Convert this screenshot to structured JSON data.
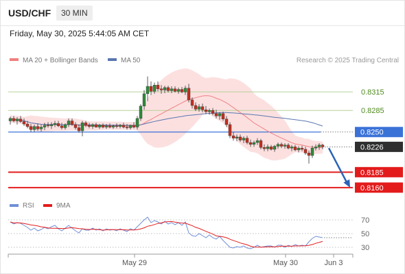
{
  "header": {
    "symbol": "USD/CHF",
    "timeframe": "30 MIN"
  },
  "datetime": "Friday, May 30, 2025 5:44:05 AM CET",
  "legend": {
    "ma20_bb": "MA 20 + Bollinger Bands",
    "ma50": "MA 50",
    "source": "Research © 2025 Trading Central"
  },
  "rsi_legend": {
    "rsi": "RSI",
    "ma9": "9MA"
  },
  "colors": {
    "candle_up": "#2e8b3a",
    "candle_down": "#c23020",
    "ma20": "#f08080",
    "ma50": "#5a76b0",
    "bands_fill": "#fbd5d5",
    "resistance": "#b5d096",
    "pivot": "#3b72d8",
    "support": "#e31b1b",
    "rsi": "#6f8fd8",
    "rsi_ma": "#e31b1b",
    "arrow": "#2a62b8"
  },
  "chart_data": {
    "type": "candlestick",
    "price_axis": {
      "range": [
        0.8141,
        0.8354
      ]
    },
    "levels": [
      {
        "name": "resistance-2",
        "value": 0.8315,
        "label": "0.8315",
        "kind": "resistance"
      },
      {
        "name": "resistance-1",
        "value": 0.8285,
        "label": "0.8285",
        "kind": "resistance"
      },
      {
        "name": "pivot",
        "value": 0.825,
        "label": "0.8250",
        "kind": "pivot"
      },
      {
        "name": "current-price",
        "value": 0.8226,
        "label": "0.8226",
        "kind": "last"
      },
      {
        "name": "support-1",
        "value": 0.8185,
        "label": "0.8185",
        "kind": "support"
      },
      {
        "name": "support-2",
        "value": 0.816,
        "label": "0.8160",
        "kind": "support"
      }
    ],
    "x_ticks": [
      "May 29",
      "May 30",
      "Jun 3"
    ],
    "forecast_arrow": {
      "from": 0.8224,
      "to": 0.816,
      "direction": "down"
    },
    "candles": [
      [
        0.8268,
        0.8275,
        0.8262,
        0.8272
      ],
      [
        0.8272,
        0.8276,
        0.8266,
        0.8268
      ],
      [
        0.8268,
        0.8274,
        0.8262,
        0.8271
      ],
      [
        0.8271,
        0.8276,
        0.8265,
        0.8267
      ],
      [
        0.8267,
        0.8272,
        0.826,
        0.8263
      ],
      [
        0.8263,
        0.8268,
        0.8256,
        0.8259
      ],
      [
        0.8259,
        0.8263,
        0.825,
        0.8254
      ],
      [
        0.8254,
        0.8262,
        0.825,
        0.8259
      ],
      [
        0.8259,
        0.8264,
        0.8252,
        0.8255
      ],
      [
        0.8255,
        0.8262,
        0.8251,
        0.8258
      ],
      [
        0.8258,
        0.8265,
        0.8253,
        0.8261
      ],
      [
        0.8261,
        0.8266,
        0.8257,
        0.826
      ],
      [
        0.826,
        0.8266,
        0.8255,
        0.8262
      ],
      [
        0.8262,
        0.8268,
        0.8258,
        0.8264
      ],
      [
        0.8264,
        0.8268,
        0.8258,
        0.826
      ],
      [
        0.826,
        0.8265,
        0.8254,
        0.8257
      ],
      [
        0.8257,
        0.8264,
        0.8254,
        0.8262
      ],
      [
        0.8262,
        0.8272,
        0.8258,
        0.8268
      ],
      [
        0.8268,
        0.8272,
        0.826,
        0.8262
      ],
      [
        0.8262,
        0.8266,
        0.8254,
        0.8257
      ],
      [
        0.8257,
        0.8262,
        0.8249,
        0.8252
      ],
      [
        0.8252,
        0.8268,
        0.8243,
        0.8265
      ],
      [
        0.8265,
        0.8268,
        0.8258,
        0.8261
      ],
      [
        0.8261,
        0.8265,
        0.8256,
        0.8259
      ],
      [
        0.8259,
        0.8264,
        0.8255,
        0.8262
      ],
      [
        0.8262,
        0.8265,
        0.8257,
        0.8258
      ],
      [
        0.8258,
        0.8263,
        0.8255,
        0.8261
      ],
      [
        0.8261,
        0.8264,
        0.8256,
        0.8258
      ],
      [
        0.8258,
        0.8263,
        0.8255,
        0.826
      ],
      [
        0.826,
        0.8264,
        0.8256,
        0.8258
      ],
      [
        0.8258,
        0.8262,
        0.8255,
        0.826
      ],
      [
        0.826,
        0.8264,
        0.8256,
        0.8259
      ],
      [
        0.8259,
        0.8263,
        0.8256,
        0.8261
      ],
      [
        0.8261,
        0.8265,
        0.8256,
        0.8258
      ],
      [
        0.8258,
        0.8263,
        0.8254,
        0.8257
      ],
      [
        0.8257,
        0.8262,
        0.8254,
        0.8261
      ],
      [
        0.8261,
        0.8266,
        0.8256,
        0.8258
      ],
      [
        0.8258,
        0.8276,
        0.8254,
        0.8272
      ],
      [
        0.8272,
        0.8295,
        0.8268,
        0.8292
      ],
      [
        0.8292,
        0.8318,
        0.8286,
        0.8312
      ],
      [
        0.8312,
        0.834,
        0.83,
        0.8324
      ],
      [
        0.8324,
        0.8332,
        0.831,
        0.8316
      ],
      [
        0.8316,
        0.833,
        0.8312,
        0.8326
      ],
      [
        0.8326,
        0.8332,
        0.8316,
        0.832
      ],
      [
        0.832,
        0.8326,
        0.8312,
        0.8318
      ],
      [
        0.8318,
        0.8325,
        0.8313,
        0.8322
      ],
      [
        0.8322,
        0.8325,
        0.8314,
        0.8317
      ],
      [
        0.8317,
        0.8324,
        0.8313,
        0.832
      ],
      [
        0.832,
        0.8324,
        0.8314,
        0.8316
      ],
      [
        0.8316,
        0.8322,
        0.8312,
        0.8319
      ],
      [
        0.8319,
        0.8323,
        0.8313,
        0.8315
      ],
      [
        0.8315,
        0.8325,
        0.831,
        0.8321
      ],
      [
        0.8321,
        0.8328,
        0.8298,
        0.8302
      ],
      [
        0.8302,
        0.8306,
        0.8288,
        0.8293
      ],
      [
        0.8293,
        0.8298,
        0.8284,
        0.8287
      ],
      [
        0.8287,
        0.8295,
        0.8283,
        0.8291
      ],
      [
        0.8291,
        0.8296,
        0.8282,
        0.8286
      ],
      [
        0.8286,
        0.8292,
        0.8279,
        0.8283
      ],
      [
        0.8283,
        0.8288,
        0.8278,
        0.8285
      ],
      [
        0.8285,
        0.8289,
        0.8277,
        0.828
      ],
      [
        0.828,
        0.8286,
        0.8272,
        0.8276
      ],
      [
        0.8276,
        0.8282,
        0.827,
        0.828
      ],
      [
        0.828,
        0.8283,
        0.8268,
        0.8271
      ],
      [
        0.8271,
        0.8276,
        0.8258,
        0.8262
      ],
      [
        0.8262,
        0.8266,
        0.824,
        0.8244
      ],
      [
        0.8244,
        0.825,
        0.8236,
        0.824
      ],
      [
        0.824,
        0.8246,
        0.8235,
        0.8242
      ],
      [
        0.8242,
        0.8246,
        0.8234,
        0.8237
      ],
      [
        0.8237,
        0.8243,
        0.8232,
        0.824
      ],
      [
        0.824,
        0.8244,
        0.823,
        0.8233
      ],
      [
        0.8233,
        0.8238,
        0.8226,
        0.823
      ],
      [
        0.823,
        0.8236,
        0.8226,
        0.8233
      ],
      [
        0.8233,
        0.824,
        0.8229,
        0.8236
      ],
      [
        0.8236,
        0.8239,
        0.8222,
        0.8225
      ],
      [
        0.8225,
        0.823,
        0.8219,
        0.8223
      ],
      [
        0.8223,
        0.823,
        0.8219,
        0.8226
      ],
      [
        0.8226,
        0.8229,
        0.822,
        0.8222
      ],
      [
        0.8222,
        0.8229,
        0.8218,
        0.8227
      ],
      [
        0.8227,
        0.8233,
        0.8223,
        0.823
      ],
      [
        0.823,
        0.8233,
        0.8224,
        0.8227
      ],
      [
        0.8227,
        0.8232,
        0.8223,
        0.8229
      ],
      [
        0.8229,
        0.8232,
        0.8222,
        0.8224
      ],
      [
        0.8224,
        0.8229,
        0.8219,
        0.8226
      ],
      [
        0.8226,
        0.8229,
        0.8219,
        0.8221
      ],
      [
        0.8221,
        0.8227,
        0.8217,
        0.8224
      ],
      [
        0.8224,
        0.8228,
        0.8219,
        0.8222
      ],
      [
        0.8222,
        0.8226,
        0.8213,
        0.8216
      ],
      [
        0.8216,
        0.822,
        0.8199,
        0.8212
      ],
      [
        0.8212,
        0.8228,
        0.8208,
        0.8224
      ],
      [
        0.8224,
        0.823,
        0.822,
        0.8226
      ],
      [
        0.8226,
        0.8232,
        0.8221,
        0.8229
      ],
      [
        0.8229,
        0.8231,
        0.8222,
        0.8226
      ]
    ],
    "rsi": {
      "axis": {
        "range": [
          20,
          80
        ],
        "ticks": [
          30,
          50,
          70
        ]
      },
      "values": [
        67,
        64,
        66,
        65,
        62,
        59,
        55,
        58,
        54,
        56,
        59,
        57,
        60,
        62,
        57,
        54,
        58,
        62,
        58,
        54,
        51,
        57,
        55,
        55,
        58,
        55,
        57,
        54,
        57,
        55,
        56,
        54,
        57,
        55,
        53,
        57,
        55,
        60,
        65,
        70,
        74,
        66,
        69,
        67,
        64,
        68,
        64,
        66,
        63,
        66,
        62,
        67,
        51,
        47,
        46,
        50,
        47,
        44,
        48,
        44,
        42,
        46,
        40,
        35,
        30,
        29,
        31,
        30,
        32,
        29,
        28,
        30,
        33,
        30,
        31,
        32,
        32,
        30,
        33,
        33,
        30,
        33,
        31,
        34,
        32,
        33,
        32,
        38,
        43,
        46,
        45,
        44
      ]
    }
  }
}
